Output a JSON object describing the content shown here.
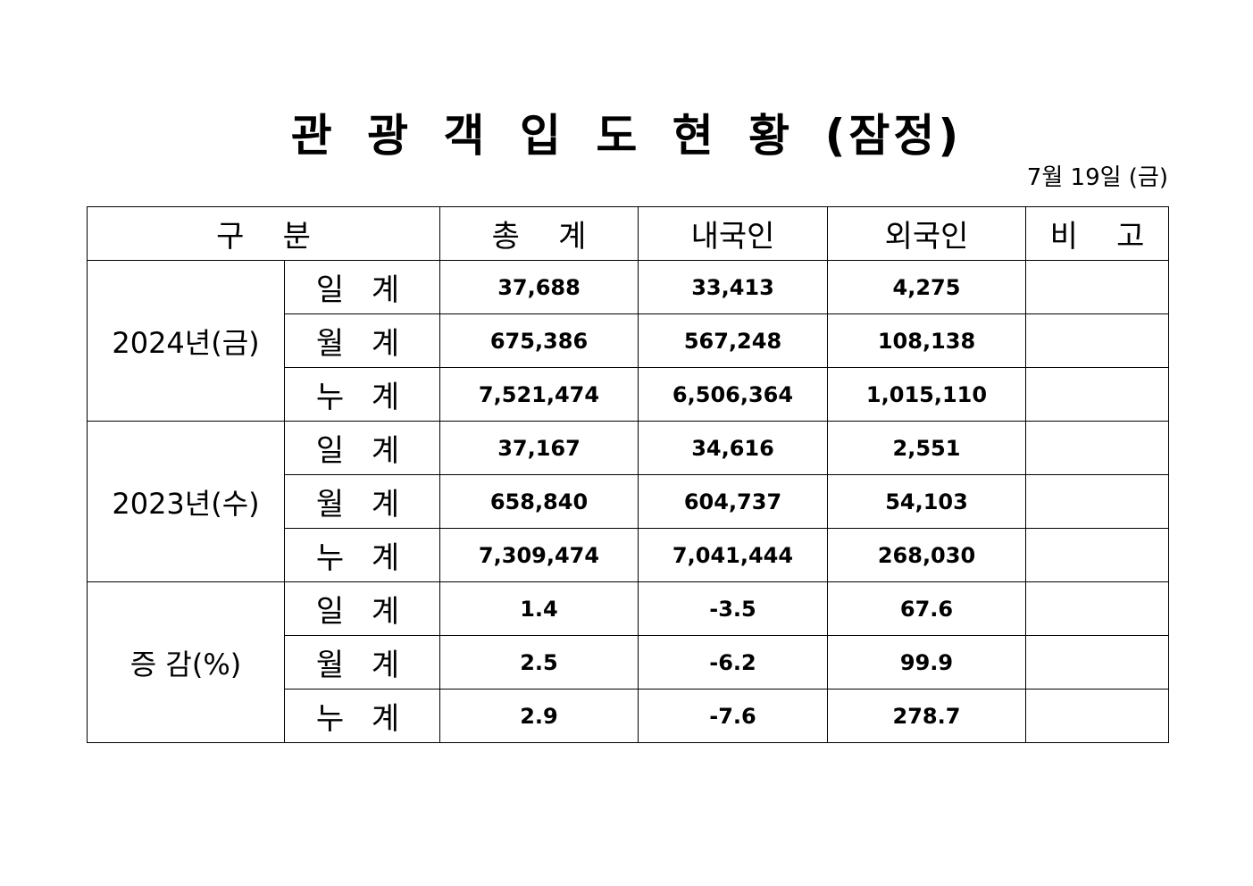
{
  "title": "관 광 객 입 도 현 황 (잠정)",
  "date": "7월 19일 (금)",
  "headers": [
    "구    분",
    "총    계",
    "내국인",
    "외국인",
    "비    고"
  ],
  "groups": [
    {
      "label": "2024년(금)",
      "rows": [
        {
          "sub": "일 계",
          "total": "37,688",
          "domestic": "33,413",
          "foreign": "4,275",
          "note": ""
        },
        {
          "sub": "월 계",
          "total": "675,386",
          "domestic": "567,248",
          "foreign": "108,138",
          "note": ""
        },
        {
          "sub": "누 계",
          "total": "7,521,474",
          "domestic": "6,506,364",
          "foreign": "1,015,110",
          "note": ""
        }
      ]
    },
    {
      "label": "2023년(수)",
      "rows": [
        {
          "sub": "일 계",
          "total": "37,167",
          "domestic": "34,616",
          "foreign": "2,551",
          "note": ""
        },
        {
          "sub": "월 계",
          "total": "658,840",
          "domestic": "604,737",
          "foreign": "54,103",
          "note": ""
        },
        {
          "sub": "누 계",
          "total": "7,309,474",
          "domestic": "7,041,444",
          "foreign": "268,030",
          "note": ""
        }
      ]
    },
    {
      "label": "증 감(%)",
      "rows": [
        {
          "sub": "일 계",
          "total": "1.4",
          "domestic": "-3.5",
          "foreign": "67.6",
          "note": ""
        },
        {
          "sub": "월 계",
          "total": "2.5",
          "domestic": "-6.2",
          "foreign": "99.9",
          "note": ""
        },
        {
          "sub": "누 계",
          "total": "2.9",
          "domestic": "-7.6",
          "foreign": "278.7",
          "note": ""
        }
      ]
    }
  ]
}
